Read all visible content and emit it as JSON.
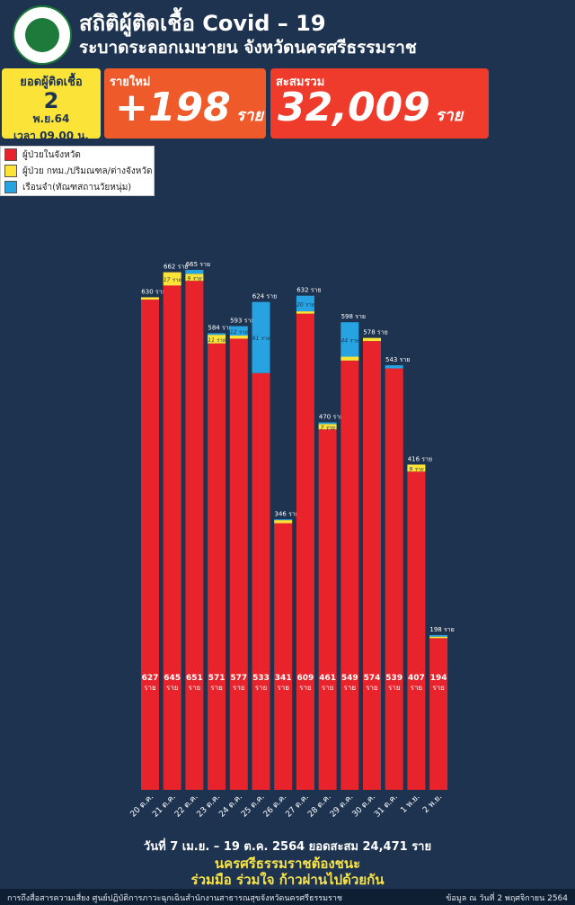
{
  "header": {
    "title": "สถิติผู้ติดเชื้อ Covid – 19",
    "subtitle": "ระบาดระลอกเมษายน จังหวัดนครศรีธรรมราช"
  },
  "date_box": {
    "label": "ยอดผู้ติดเชื้อ",
    "day": "2",
    "month": "พ.ย.64",
    "time": "เวลา 09.00 น."
  },
  "new_cases": {
    "label": "รายใหม่",
    "value": "+198",
    "unit": "ราย"
  },
  "total_cases": {
    "label": "สะสมรวม",
    "value": "32,009",
    "unit": "ราย"
  },
  "legend": [
    {
      "label": "ผู้ป่วยในจังหวัด",
      "color": "#e8232b"
    },
    {
      "label": "ผู้ป่วย กทม./ปริมณฑล/ต่างจังหวัด",
      "color": "#fbe338"
    },
    {
      "label": "เรือนจำ(ทัณฑสถานวัยหนุ่ม)",
      "color": "#27a3e2"
    }
  ],
  "chart_data": {
    "type": "bar",
    "stacked": true,
    "categories": [
      "20 ต.ค.",
      "21 ต.ค.",
      "22 ต.ค.",
      "23 ต.ค.",
      "24 ต.ค.",
      "25 ต.ค.",
      "26 ต.ค.",
      "27 ต.ค.",
      "28 ต.ค.",
      "29 ต.ค.",
      "30 ต.ค.",
      "31 ต.ค.",
      "1 พ.ย.",
      "2 พ.ย."
    ],
    "totals": [
      630,
      662,
      665,
      584,
      593,
      624,
      346,
      632,
      470,
      598,
      578,
      543,
      416,
      198
    ],
    "series": [
      {
        "name": "ผู้ป่วยในจังหวัด",
        "color": "#e8232b",
        "values": [
          627,
          645,
          651,
          571,
          577,
          533,
          341,
          609,
          461,
          549,
          574,
          539,
          407,
          194
        ]
      },
      {
        "name": "ผู้ป่วย กทม./ปริมณฑล/ต่างจังหวัด",
        "color": "#fbe338",
        "values": [
          3,
          17,
          9,
          11,
          4,
          0,
          4,
          3,
          7,
          5,
          4,
          0,
          9,
          2
        ]
      },
      {
        "name": "เรือนจำ(ทัณฑสถานวัยหนุ่ม)",
        "color": "#27a3e2",
        "values": [
          0,
          0,
          5,
          2,
          12,
          91,
          1,
          20,
          2,
          44,
          0,
          4,
          0,
          2
        ]
      }
    ],
    "value_unit": "ราย",
    "ylim": [
      0,
      665
    ]
  },
  "footer": {
    "summary": "วันที่ 7 เม.ย. – 19 ต.ค. 2564 ยอดสะสม 24,471 ราย",
    "slogan1": "นครศรีธรรมราชต้องชนะ",
    "slogan2": "ร่วมมือ ร่วมใจ ก้าวผ่านไปด้วยกัน",
    "source": "การถึงสื่อสารความเสี่ยง ศูนย์ปฏิบัติการภาวะฉุกเฉินสำนักงานสาธารณสุขจังหวัดนครศรีธรรมราช",
    "as_of": "ข้อมูล ณ วันที่ 2 พฤศจิกายน 2564"
  }
}
